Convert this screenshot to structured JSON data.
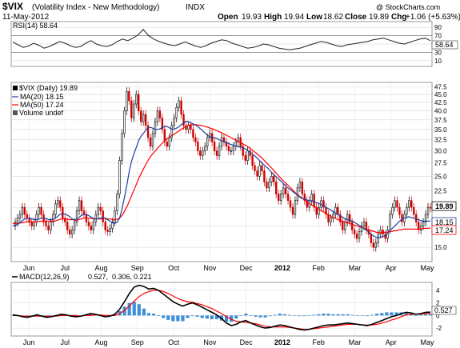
{
  "header": {
    "symbol": "$VIX",
    "name": "(Volatility Index - New Methodology)",
    "exchange": "INDX",
    "date": "11-May-2012",
    "watermark": "@ StockCharts.com",
    "ohlc": {
      "open_label": "Open",
      "open": "19.93",
      "high_label": "High",
      "high": "19.94",
      "low_label": "Low",
      "low": "18.62",
      "close_label": "Close",
      "close": "19.89",
      "chg_label": "Chg",
      "chg": "+1.06 (+5.63%)"
    }
  },
  "colors": {
    "price_up": "#000000",
    "price_down": "#cc0000",
    "ma20": "#1f3f9f",
    "ma50": "#ff0000",
    "macd_line": "#000000",
    "signal_line": "#ff0000",
    "histogram": "#3d8fd6",
    "grid": "#d8d8d8"
  },
  "chart_data": [
    {
      "type": "line",
      "panel": "RSI",
      "legend": "RSI(14) 58.64",
      "ylim": [
        0,
        100
      ],
      "y_ticks": [
        "90",
        "70",
        "50",
        "30",
        "10"
      ],
      "value_label": "58.64",
      "series": [
        {
          "name": "RSI(14)",
          "values": [
            55,
            48,
            42,
            45,
            52,
            47,
            40,
            44,
            50,
            56,
            52,
            46,
            42,
            44,
            52,
            58,
            50,
            46,
            44,
            48,
            56,
            62,
            58,
            64,
            72,
            85,
            70,
            62,
            56,
            52,
            48,
            46,
            50,
            55,
            50,
            45,
            42,
            46,
            52,
            56,
            60,
            58,
            52,
            48,
            44,
            40,
            42,
            45,
            50,
            48,
            44,
            40,
            38,
            36,
            38,
            40,
            44,
            48,
            52,
            56,
            54,
            50,
            46,
            44,
            48,
            50,
            52,
            54,
            56,
            60,
            62,
            64,
            60,
            56,
            52,
            50,
            54,
            58,
            62,
            64,
            58
          ]
        }
      ]
    },
    {
      "type": "line",
      "panel": "price",
      "legend": [
        "$VIX (Daily) 19.89",
        "MA(20) 18.15",
        "MA(50) 17.24",
        "Volume undef"
      ],
      "ylim": [
        13.7,
        48.5
      ],
      "log_scale": true,
      "y_ticks": [
        "47.5",
        "45.0",
        "42.5",
        "40.0",
        "37.5",
        "35.0",
        "32.5",
        "30.0",
        "27.5",
        "25.0",
        "22.5",
        "20.0",
        "17.5",
        "15.0"
      ],
      "x_ticks": [
        "Jun",
        "Jul",
        "Aug",
        "Sep",
        "Oct",
        "Nov",
        "Dec",
        "2012",
        "Feb",
        "Mar",
        "Apr",
        "May"
      ],
      "series": [
        {
          "name": "$VIX",
          "values": [
            17.5,
            18,
            18.5,
            19,
            20,
            19,
            18.5,
            18,
            17.5,
            18,
            19,
            20,
            19,
            18,
            17.5,
            17,
            18,
            19,
            20.5,
            21,
            20,
            18.5,
            18,
            17,
            16.5,
            17,
            18,
            19.5,
            21,
            19.5,
            19,
            18,
            17.5,
            17,
            18,
            19,
            20,
            19.5,
            18,
            17,
            16.8,
            17.2,
            18,
            19.5,
            22,
            28,
            34,
            40,
            46,
            43,
            38,
            42,
            45,
            40,
            37,
            39,
            36,
            33,
            31,
            34,
            37,
            40,
            38,
            35,
            32,
            31,
            33,
            36,
            38,
            41,
            43,
            39,
            36,
            35,
            36,
            35,
            33,
            32,
            30,
            29,
            30,
            31,
            33,
            34,
            32,
            30,
            29,
            31,
            33,
            32,
            31,
            30,
            30,
            31,
            32,
            33,
            31,
            29,
            28,
            30,
            29,
            27,
            26,
            25,
            27,
            26,
            24,
            23,
            24,
            25,
            24,
            22,
            21,
            22,
            23,
            22,
            21,
            20,
            19,
            21,
            23,
            24,
            22,
            21,
            20,
            21,
            22,
            20,
            19,
            20,
            21,
            20,
            19,
            18,
            18.5,
            19,
            20,
            19,
            18,
            17,
            18,
            19,
            18,
            17,
            16.5,
            16,
            16.8,
            17.5,
            18,
            17,
            16.5,
            15.5,
            15,
            15.5,
            16.5,
            17,
            16.5,
            16,
            17,
            19,
            20,
            21,
            20,
            19,
            18,
            19,
            20,
            21,
            20,
            19,
            18,
            17,
            17.5,
            18,
            19,
            20,
            19.89
          ]
        },
        {
          "name": "MA(20)",
          "values": [
            17.5,
            17.6,
            17.7,
            17.9,
            18.2,
            18.4,
            18.5,
            18.5,
            18.4,
            18.3,
            18.3,
            18.4,
            18.5,
            18.5,
            18.4,
            18.3,
            18.3,
            18.4,
            18.6,
            18.9,
            19.1,
            19.1,
            19,
            18.8,
            18.5,
            18.3,
            18.3,
            18.5,
            18.8,
            19,
            19,
            18.9,
            18.7,
            18.5,
            18.4,
            18.4,
            18.5,
            18.6,
            18.5,
            18.3,
            18.1,
            17.9,
            17.8,
            18,
            18.5,
            19.8,
            21.5,
            23.5,
            26,
            28,
            29.5,
            31,
            32.5,
            33.5,
            34.2,
            35,
            35.5,
            35.5,
            35.2,
            35,
            35,
            35.3,
            35.6,
            35.8,
            35.6,
            35.2,
            35,
            35.2,
            35.5,
            36,
            36.5,
            37,
            37.1,
            36.8,
            36.5,
            36.2,
            35.8,
            35.3,
            34.8,
            34.2,
            33.7,
            33.2,
            33,
            33,
            32.8,
            32.5,
            32.2,
            32,
            31.8,
            31.6,
            31.4,
            31.2,
            31,
            30.9,
            30.8,
            30.6,
            30.4,
            30,
            29.6,
            29.2,
            28.8,
            28.3,
            27.8,
            27.3,
            26.9,
            26.5,
            26,
            25.5,
            25.1,
            24.7,
            24.3,
            23.9,
            23.5,
            23.1,
            22.8,
            22.5,
            22.2,
            21.9,
            21.6,
            21.3,
            21.2,
            21.1,
            21,
            20.9,
            20.8,
            20.7,
            20.6,
            20.4,
            20.2,
            20,
            19.8,
            19.6,
            19.4,
            19.2,
            19,
            18.8,
            18.6,
            18.4,
            18.3,
            18.2,
            18.1,
            17.9,
            17.7,
            17.5,
            17.3,
            17.1,
            16.9,
            16.6,
            16.4,
            16.2,
            16.1,
            16.1,
            16.2,
            16.3,
            16.5,
            16.8,
            17.1,
            17.4,
            17.7,
            18,
            18.3,
            18.5,
            18.6,
            18.7,
            18.6,
            18.5,
            18.4,
            18.3,
            18.2,
            18.1,
            18.1,
            18.1,
            18.15
          ]
        },
        {
          "name": "MA(50)",
          "values": [
            17.8,
            17.8,
            17.8,
            17.9,
            17.9,
            18,
            18,
            18,
            18,
            18,
            18,
            18.1,
            18.1,
            18.1,
            18.1,
            18.1,
            18.1,
            18.1,
            18.2,
            18.3,
            18.4,
            18.4,
            18.4,
            18.3,
            18.3,
            18.3,
            18.2,
            18.3,
            18.4,
            18.5,
            18.5,
            18.5,
            18.5,
            18.4,
            18.4,
            18.4,
            18.4,
            18.5,
            18.5,
            18.4,
            18.4,
            18.3,
            18.3,
            18.4,
            18.6,
            19,
            19.6,
            20.3,
            21.2,
            22.1,
            23,
            24,
            25,
            25.9,
            26.8,
            27.7,
            28.5,
            29.2,
            29.8,
            30.4,
            31,
            31.6,
            32.2,
            32.7,
            33.1,
            33.5,
            33.8,
            34.2,
            34.6,
            35,
            35.4,
            35.8,
            36.1,
            36.2,
            36.2,
            36.2,
            36.1,
            36,
            35.9,
            35.7,
            35.5,
            35.3,
            35.1,
            34.8,
            34.6,
            34.3,
            34,
            33.7,
            33.4,
            33.1,
            32.8,
            32.5,
            32.2,
            31.9,
            31.6,
            31.3,
            31,
            30.6,
            30.2,
            29.8,
            29.4,
            28.9,
            28.5,
            28,
            27.5,
            27,
            26.5,
            26,
            25.5,
            25,
            24.5,
            24.1,
            23.7,
            23.3,
            22.9,
            22.5,
            22.1,
            21.8,
            21.5,
            21.2,
            20.9,
            20.6,
            20.4,
            20.2,
            20,
            19.8,
            19.6,
            19.4,
            19.2,
            19,
            18.8,
            18.6,
            18.5,
            18.3,
            18.2,
            18.1,
            18,
            17.9,
            17.8,
            17.7,
            17.6,
            17.5,
            17.4,
            17.3,
            17.2,
            17.1,
            17,
            16.9,
            16.8,
            16.7,
            16.7,
            16.7,
            16.7,
            16.7,
            16.8,
            16.8,
            16.9,
            16.9,
            17,
            17,
            17.1,
            17.1,
            17.1,
            17.1,
            17.1,
            17.1,
            17.1,
            17.1,
            17.2,
            17.2,
            17.2,
            17.24
          ]
        }
      ],
      "value_labels": [
        "19.89",
        "18.15",
        "17.24"
      ]
    },
    {
      "type": "line",
      "panel": "MACD",
      "legend": [
        "MACD(12,26,9)",
        "0.527,",
        "0.306,",
        "0.221"
      ],
      "ylim": [
        -3,
        5
      ],
      "y_ticks": [
        "4",
        "2",
        "0",
        "-2"
      ],
      "value_label": "0.527",
      "x_ticks": [
        "Jun",
        "Jul",
        "Aug",
        "Sep",
        "Oct",
        "Nov",
        "Dec",
        "2012",
        "Feb",
        "Mar",
        "Apr",
        "May"
      ],
      "series": [
        {
          "name": "MACD",
          "values": [
            0.1,
            0,
            -0.2,
            -0.3,
            -0.1,
            0.1,
            -0.1,
            -0.3,
            -0.2,
            0,
            0.2,
            0.1,
            -0.1,
            -0.2,
            -0.1,
            0.1,
            0.3,
            0.2,
            0,
            -0.2,
            -0.1,
            0.2,
            1,
            2.2,
            3.5,
            4.5,
            4.8,
            4.6,
            4.2,
            4.3,
            4,
            3.4,
            2.8,
            2.2,
            1.8,
            1.5,
            1.8,
            2,
            1.7,
            1.3,
            0.9,
            0.5,
            0.1,
            -0.5,
            -1.2,
            -1.6,
            -1.4,
            -1,
            -0.8,
            -1.2,
            -1.5,
            -1.8,
            -2,
            -1.9,
            -1.7,
            -1.5,
            -1.6,
            -1.8,
            -2,
            -2.2,
            -2.3,
            -2.2,
            -2,
            -1.8,
            -1.6,
            -1.5,
            -1.5,
            -1.4,
            -1.3,
            -1.2,
            -1.3,
            -1.4,
            -1.5,
            -1.6,
            -1.4,
            -1.1,
            -0.8,
            -0.5,
            -0.2,
            0,
            0.3,
            0.5,
            0.4,
            0.2,
            0.3,
            0.5,
            0.527
          ]
        },
        {
          "name": "Signal",
          "values": [
            0,
            0,
            -0.1,
            -0.1,
            -0.1,
            -0.1,
            -0.1,
            -0.1,
            -0.1,
            -0.1,
            0,
            0,
            0,
            0,
            -0.1,
            0,
            0,
            0.1,
            0.1,
            0,
            0,
            0,
            0.3,
            0.8,
            1.5,
            2.3,
            3,
            3.5,
            3.8,
            4,
            4,
            3.8,
            3.5,
            3.1,
            2.7,
            2.4,
            2.2,
            2.1,
            1.9,
            1.7,
            1.4,
            1.1,
            0.7,
            0.3,
            -0.2,
            -0.6,
            -0.9,
            -1,
            -1.1,
            -1.2,
            -1.3,
            -1.5,
            -1.7,
            -1.8,
            -1.8,
            -1.8,
            -1.8,
            -1.9,
            -2,
            -2.1,
            -2.2,
            -2.2,
            -2.1,
            -2,
            -1.9,
            -1.8,
            -1.7,
            -1.6,
            -1.5,
            -1.4,
            -1.4,
            -1.4,
            -1.5,
            -1.5,
            -1.5,
            -1.4,
            -1.2,
            -1,
            -0.7,
            -0.5,
            -0.2,
            0.1,
            0.2,
            0.2,
            0.2,
            0.3,
            0.306
          ]
        }
      ]
    }
  ]
}
